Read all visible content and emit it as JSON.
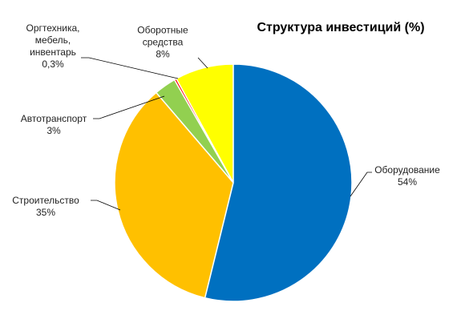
{
  "chart_data": {
    "type": "pie",
    "title": "Структура инвестиций (%)",
    "categories": [
      "Оборудование",
      "Строительство",
      "Автотранспорт",
      "Оргтехника, мебель, инвентарь",
      "Оборотные средства"
    ],
    "values": [
      54,
      35,
      3,
      0.3,
      8
    ],
    "value_labels": [
      "54%",
      "35%",
      "3%",
      "0,3%",
      "8%"
    ],
    "colors": [
      "#0070c0",
      "#ffc000",
      "#92d050",
      "#ff0000",
      "#ffff00"
    ]
  }
}
